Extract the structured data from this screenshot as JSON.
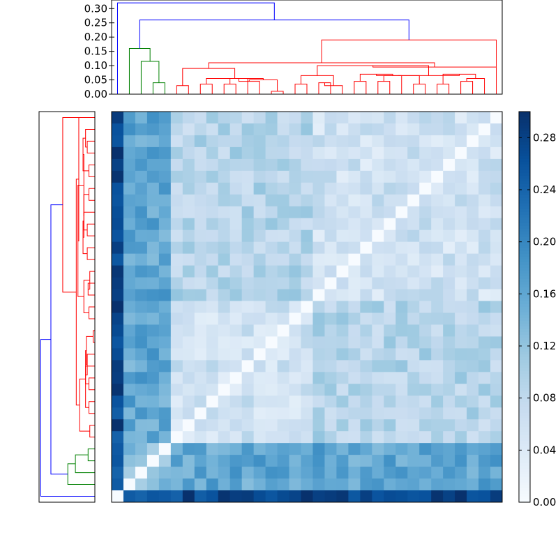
{
  "chart_data": [
    {
      "type": "dendrogram",
      "position": "top",
      "title": "",
      "xlabel": "",
      "ylabel": "",
      "ylim": [
        0,
        0.33
      ],
      "yticks": [
        "0.00",
        "0.05",
        "0.10",
        "0.15",
        "0.20",
        "0.25",
        "0.30"
      ],
      "cluster_colors": [
        "#0000ff",
        "#ff0000",
        "#008000"
      ],
      "leaves": 33,
      "root_height": 0.32,
      "top_split_heights": [
        0.32,
        0.26,
        0.19,
        0.16
      ]
    },
    {
      "type": "dendrogram",
      "position": "left",
      "title": "",
      "leaves": 33,
      "cluster_colors": [
        "#0000ff",
        "#ff0000",
        "#008000"
      ]
    },
    {
      "type": "heatmap",
      "title": "",
      "xlabel": "",
      "ylabel": "",
      "size": 33,
      "colormap": "Blues",
      "colorbar": {
        "range": [
          0,
          0.3
        ],
        "ticks": [
          "0.00",
          "0.04",
          "0.08",
          "0.12",
          "0.16",
          "0.20",
          "0.24",
          "0.28"
        ]
      },
      "matrix_note": "approximate pairwise distance values, top row first"
    }
  ]
}
